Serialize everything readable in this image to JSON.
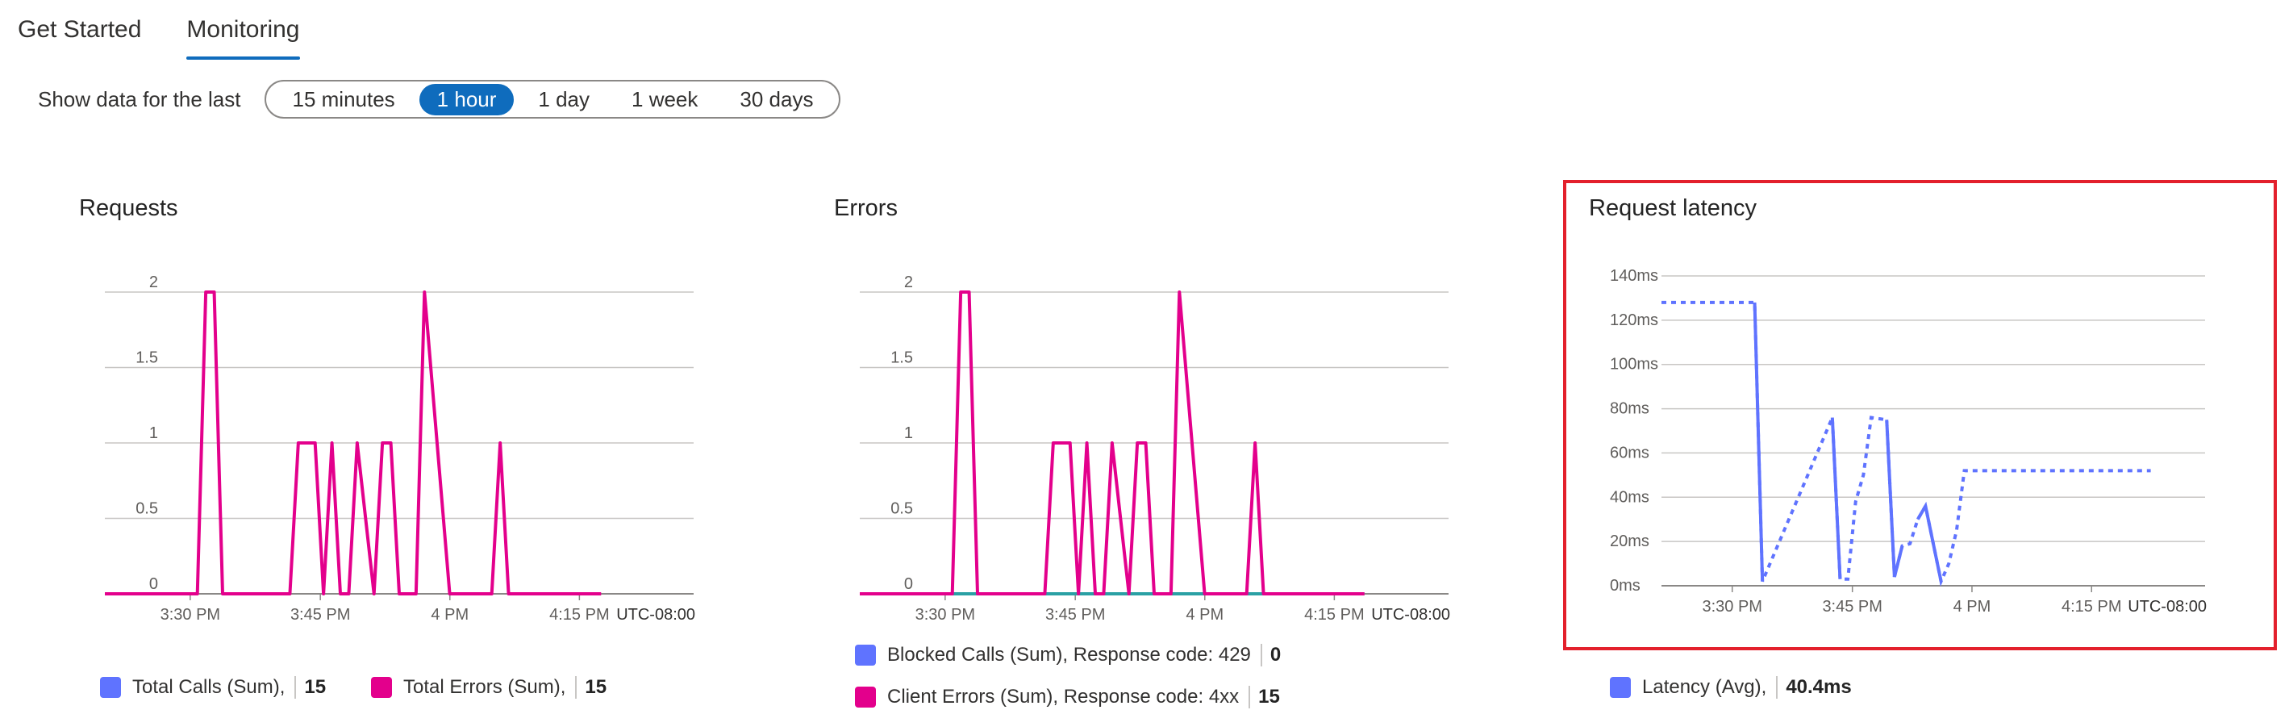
{
  "tabs": [
    {
      "label": "Get Started",
      "active": false
    },
    {
      "label": "Monitoring",
      "active": true
    }
  ],
  "time_range": {
    "label": "Show data for the last",
    "options": [
      "15 minutes",
      "1 hour",
      "1 day",
      "1 week",
      "30 days"
    ],
    "selected": "1 hour"
  },
  "colors": {
    "pink": "#e3008c",
    "teal": "#2aa0a4",
    "blue": "#5f73ff",
    "highlight": "#e3202c",
    "accent": "#0f6cbd"
  },
  "chart_data": [
    {
      "type": "line",
      "title": "Requests",
      "x_ticks": [
        "3:30 PM",
        "3:45 PM",
        "4 PM",
        "4:15 PM"
      ],
      "timezone": "UTC-08:00",
      "y_ticks": [
        "0",
        "0.5",
        "1",
        "1.5",
        "2"
      ],
      "ylim": [
        0,
        2
      ],
      "xlim": [
        0,
        70
      ],
      "series": [
        {
          "name": "Total Calls (Sum),",
          "color": "#5f73ff",
          "total": "15",
          "x": [
            0,
            11,
            12,
            13,
            14,
            15,
            19,
            22,
            23,
            24,
            25,
            26,
            27,
            27.5,
            28,
            29,
            30,
            31,
            32,
            33,
            36,
            37,
            38,
            38.5,
            39,
            40,
            41,
            42,
            46,
            47,
            48,
            49,
            50,
            51,
            52,
            53,
            58,
            59
          ],
          "y": [
            0,
            0,
            0,
            0,
            0,
            0,
            0,
            0,
            0,
            0,
            0,
            0,
            0,
            0,
            0,
            0,
            0,
            0,
            0,
            0,
            0,
            0,
            0,
            0,
            0,
            0,
            0,
            0,
            0,
            0,
            0,
            0,
            0,
            0,
            0,
            0,
            0,
            0
          ],
          "hidden": true
        },
        {
          "name": "Total Errors (Sum),",
          "color": "#e3008c",
          "total": "15",
          "x": [
            0,
            11,
            12,
            13,
            14,
            15,
            22,
            23,
            25,
            26,
            27,
            28,
            29,
            30,
            32,
            33,
            34,
            35,
            36,
            37,
            38,
            41,
            42,
            45,
            46,
            47,
            48,
            52,
            53,
            54,
            59
          ],
          "y": [
            0,
            0,
            2,
            2,
            0,
            0,
            0,
            1,
            1,
            0,
            1,
            0,
            0,
            1,
            0,
            1,
            1,
            0,
            0,
            0,
            2,
            0,
            0,
            0,
            0,
            1,
            0,
            0,
            0,
            0,
            0
          ]
        }
      ]
    },
    {
      "type": "line",
      "title": "Errors",
      "x_ticks": [
        "3:30 PM",
        "3:45 PM",
        "4 PM",
        "4:15 PM"
      ],
      "timezone": "UTC-08:00",
      "y_ticks": [
        "0",
        "0.5",
        "1",
        "1.5",
        "2"
      ],
      "ylim": [
        0,
        2
      ],
      "xlim": [
        0,
        70
      ],
      "series": [
        {
          "name": "Blocked Calls (Sum), Response code: 429",
          "color": "#5f73ff",
          "total": "0",
          "x": [
            0,
            60
          ],
          "y": [
            0,
            0
          ],
          "line_color": "#2aa0a4"
        },
        {
          "name": "Client Errors (Sum), Response code: 4xx",
          "color": "#e3008c",
          "total": "15",
          "x": [
            0,
            11,
            12,
            13,
            14,
            15,
            22,
            23,
            25,
            26,
            27,
            28,
            29,
            30,
            32,
            33,
            34,
            35,
            36,
            37,
            38,
            41,
            42,
            45,
            46,
            47,
            48,
            52,
            53,
            54,
            60
          ],
          "y": [
            0,
            0,
            2,
            2,
            0,
            0,
            0,
            1,
            1,
            0,
            1,
            0,
            0,
            1,
            0,
            1,
            1,
            0,
            0,
            0,
            2,
            0,
            0,
            0,
            0,
            1,
            0,
            0,
            0,
            0,
            0
          ]
        }
      ]
    },
    {
      "type": "line",
      "title": "Request latency",
      "x_ticks": [
        "3:30 PM",
        "3:45 PM",
        "4 PM",
        "4:15 PM"
      ],
      "timezone": "UTC-08:00",
      "y_ticks": [
        "0ms",
        "20ms",
        "40ms",
        "60ms",
        "80ms",
        "100ms",
        "120ms",
        "140ms"
      ],
      "ylim": [
        0,
        140
      ],
      "xlim": [
        0,
        70
      ],
      "series": [
        {
          "name": "Latency (Avg),",
          "color": "#5f73ff",
          "total": "40.4ms",
          "x": [
            0,
            12,
            13,
            22,
            23,
            24,
            25,
            26,
            27,
            29,
            30,
            31,
            32,
            33,
            34,
            36,
            37,
            38,
            39,
            42,
            43,
            44,
            47,
            49,
            50,
            51,
            52,
            53,
            54,
            56,
            57,
            58,
            59,
            60,
            61,
            62,
            63
          ],
          "y": [
            128,
            128,
            2,
            76,
            3,
            3,
            38,
            50,
            76,
            75,
            4,
            18,
            19,
            30,
            36,
            2,
            10,
            25,
            52,
            52,
            52,
            52,
            52,
            52,
            52,
            52,
            52,
            52,
            52,
            52,
            52,
            52,
            52,
            52,
            52,
            52,
            52
          ],
          "solid_segments": [
            [
              12,
              13
            ],
            [
              22,
              23
            ],
            [
              29,
              30
            ],
            [
              30,
              31
            ],
            [
              33,
              34
            ],
            [
              34,
              36
            ]
          ]
        }
      ]
    }
  ]
}
